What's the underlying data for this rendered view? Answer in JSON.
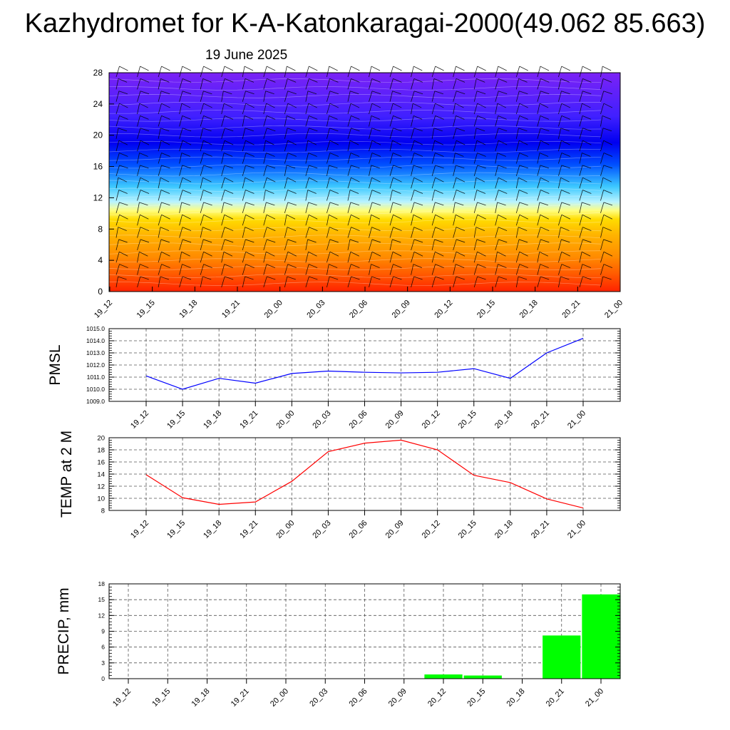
{
  "page": {
    "title": "Kazhydromet for K-A-Katonkaragai-2000(49.062 85.663)",
    "subtitle": "19 June 2025"
  },
  "chart_data": [
    {
      "id": "profile",
      "type": "heatmap",
      "title": "",
      "xlabel": "",
      "ylabel": "",
      "x_ticks": [
        "19_12",
        "19_15",
        "19_18",
        "19_21",
        "20_00",
        "20_03",
        "20_06",
        "20_09",
        "20_12",
        "20_15",
        "20_18",
        "20_21",
        "21_00"
      ],
      "y_ticks": [
        "0",
        "4",
        "8",
        "12",
        "16",
        "20",
        "24",
        "28"
      ],
      "ylim": [
        0,
        28
      ],
      "grid": false,
      "legend": "none",
      "colormap": [
        "#ff2200",
        "#ff5a00",
        "#ff8c00",
        "#ffb400",
        "#ffdc00",
        "#ffff80",
        "#b9f3ff",
        "#3cc8ff",
        "#0050ff",
        "#0000f0",
        "#4020ff",
        "#7b22f5"
      ],
      "overlay": "wind barbs"
    },
    {
      "id": "pmsl",
      "type": "line",
      "title": "",
      "xlabel": "",
      "ylabel": "PMSL",
      "categories": [
        "19_12",
        "19_15",
        "19_18",
        "19_21",
        "20_00",
        "20_03",
        "20_06",
        "20_09",
        "20_12",
        "20_15",
        "20_18",
        "20_21",
        "21_00"
      ],
      "y_ticks": [
        "1009.0",
        "1010.0",
        "1011.0",
        "1012.0",
        "1013.0",
        "1014.0",
        "1015.0"
      ],
      "ylim": [
        1009,
        1015
      ],
      "grid": true,
      "legend": "none",
      "color": "#0000ff",
      "series": [
        {
          "values": [
            1011.1,
            1010.0,
            1010.9,
            1010.5,
            1011.3,
            1011.5,
            1011.4,
            1011.35,
            1011.4,
            1011.7,
            1010.9,
            1013.0,
            1014.2
          ]
        }
      ]
    },
    {
      "id": "temp",
      "type": "line",
      "title": "",
      "xlabel": "",
      "ylabel": "TEMP at 2 M",
      "categories": [
        "19_12",
        "19_15",
        "19_18",
        "19_21",
        "20_00",
        "20_03",
        "20_06",
        "20_09",
        "20_12",
        "20_15",
        "20_18",
        "20_21",
        "21_00"
      ],
      "y_ticks": [
        "8",
        "10",
        "12",
        "14",
        "16",
        "18",
        "20"
      ],
      "ylim": [
        8,
        20
      ],
      "grid": true,
      "legend": "none",
      "color": "#ff0000",
      "series": [
        {
          "values": [
            13.9,
            10.1,
            9.0,
            9.4,
            12.8,
            17.7,
            19.1,
            19.6,
            18.0,
            13.8,
            12.6,
            9.9,
            8.4
          ]
        }
      ]
    },
    {
      "id": "precip",
      "type": "bar",
      "title": "",
      "xlabel": "",
      "ylabel": "PRECIP, mm",
      "categories": [
        "19_12",
        "19_15",
        "19_18",
        "19_21",
        "20_00",
        "20_03",
        "20_06",
        "20_09",
        "20_12",
        "20_15",
        "20_18",
        "20_21",
        "21_00"
      ],
      "y_ticks": [
        "0",
        "3",
        "6",
        "9",
        "12",
        "15",
        "18"
      ],
      "ylim": [
        0,
        18
      ],
      "grid": true,
      "legend": "none",
      "color": "#00ff00",
      "series": [
        {
          "values": [
            0,
            0,
            0,
            0,
            0,
            0,
            0,
            0,
            0.8,
            0.6,
            0,
            8.2,
            16.0
          ]
        }
      ]
    }
  ]
}
